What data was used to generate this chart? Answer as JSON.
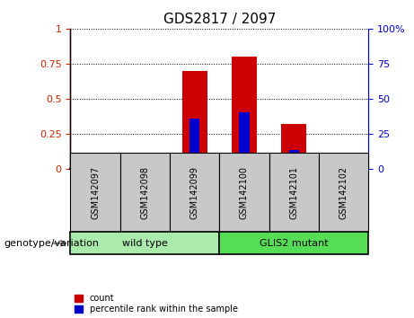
{
  "title": "GDS2817 / 2097",
  "samples": [
    "GSM142097",
    "GSM142098",
    "GSM142099",
    "GSM142100",
    "GSM142101",
    "GSM142102"
  ],
  "red_values": [
    0.0,
    0.06,
    0.7,
    0.8,
    0.32,
    0.0
  ],
  "blue_values": [
    0.0,
    0.02,
    0.36,
    0.4,
    0.13,
    0.0
  ],
  "groups": [
    {
      "label": "wild type",
      "start": 0,
      "end": 3,
      "color": "#aaeaaa"
    },
    {
      "label": "GLIS2 mutant",
      "start": 3,
      "end": 6,
      "color": "#55dd55"
    }
  ],
  "genotype_label": "genotype/variation",
  "legend_items": [
    {
      "label": "count",
      "color": "#CC0000"
    },
    {
      "label": "percentile rank within the sample",
      "color": "#0000CC"
    }
  ],
  "ylim_left": [
    0,
    1
  ],
  "ylim_right": [
    0,
    100
  ],
  "yticks_left": [
    0,
    0.25,
    0.5,
    0.75,
    1
  ],
  "yticks_right": [
    0,
    25,
    50,
    75,
    100
  ],
  "left_axis_color": "#CC2200",
  "right_axis_color": "#0000CC",
  "bar_width": 0.5,
  "blue_bar_width": 0.2,
  "background_color": "#FFFFFF",
  "tick_area_color": "#C8C8C8",
  "title_fontsize": 11,
  "tick_fontsize": 8,
  "sample_fontsize": 7,
  "group_fontsize": 8,
  "legend_fontsize": 7
}
